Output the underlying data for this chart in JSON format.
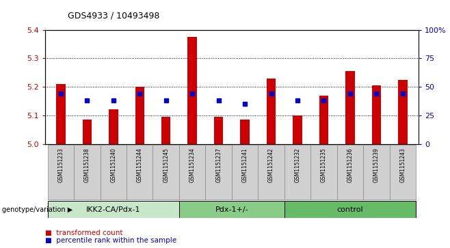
{
  "title": "GDS4933 / 10493498",
  "samples": [
    "GSM1151233",
    "GSM1151238",
    "GSM1151240",
    "GSM1151244",
    "GSM1151245",
    "GSM1151234",
    "GSM1151237",
    "GSM1151241",
    "GSM1151242",
    "GSM1151232",
    "GSM1151235",
    "GSM1151236",
    "GSM1151239",
    "GSM1151243"
  ],
  "transformed_count": [
    5.21,
    5.085,
    5.12,
    5.2,
    5.095,
    5.375,
    5.095,
    5.085,
    5.23,
    5.1,
    5.17,
    5.255,
    5.205,
    5.225
  ],
  "percentile_rank": [
    44,
    38,
    38,
    44,
    38,
    44,
    38,
    35,
    44,
    38,
    38,
    44,
    44,
    44
  ],
  "bar_base": 5.0,
  "ylim_left": [
    5.0,
    5.4
  ],
  "ylim_right": [
    0,
    100
  ],
  "yticks_left": [
    5.0,
    5.1,
    5.2,
    5.3,
    5.4
  ],
  "yticks_right": [
    0,
    25,
    50,
    75,
    100
  ],
  "bar_color": "#cc0000",
  "dot_color": "#0000cc",
  "groups": [
    {
      "label": "IKK2-CA/Pdx-1",
      "start": 0,
      "end": 5,
      "color": "#c8e6c8"
    },
    {
      "label": "Pdx-1+/-",
      "start": 5,
      "end": 9,
      "color": "#88cc88"
    },
    {
      "label": "control",
      "start": 9,
      "end": 14,
      "color": "#66bb66"
    }
  ],
  "group_label_prefix": "genotype/variation",
  "legend_items": [
    {
      "color": "#cc0000",
      "label": "transformed count"
    },
    {
      "color": "#0000cc",
      "label": "percentile rank within the sample"
    }
  ],
  "xtick_bg": "#d0d0d0"
}
